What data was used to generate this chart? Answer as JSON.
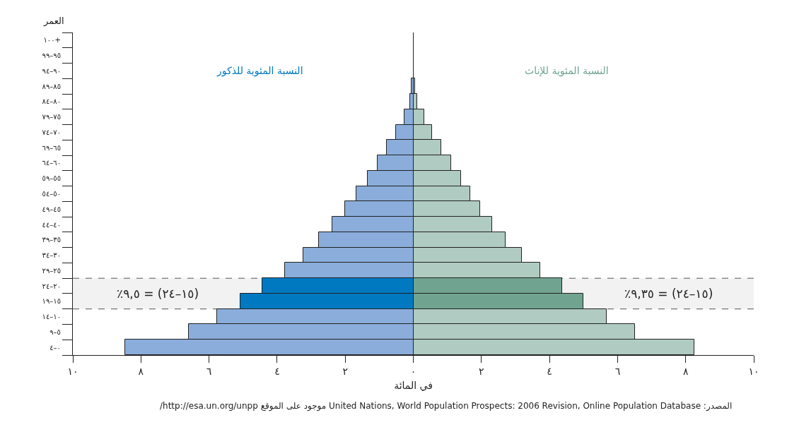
{
  "chart_data": {
    "type": "bar",
    "orientation": "horizontal",
    "ylabel": "العمر",
    "xlabel": "في المائة",
    "categories": [
      "١٠٠+",
      "٩٩–٩٥",
      "٩٤–٩٠",
      "٨٩–٨٥",
      "٨٤–٨٠",
      "٧٩–٧٥",
      "٧٤–٧٠",
      "٦٩–٦٥",
      "٦٤–٦٠",
      "٥٩–٥٥",
      "٥٤–٥٠",
      "٤٩–٤٥",
      "٤٤–٤٠",
      "٣٩–٣٥",
      "٣٤–٣٠",
      "٢٩–٢٥",
      "٢٤–٢٠",
      "١٩–١٥",
      "١٤–١٠",
      "٩–٥",
      "٤–٠"
    ],
    "series": [
      {
        "name": "النسبة المئوية للذكور",
        "colors": [
          "#8aaddb",
          "#8aaddb",
          "#8aaddb",
          "#8aaddb",
          "#8aaddb",
          "#8aaddb",
          "#8aaddb",
          "#8aaddb",
          "#8aaddb",
          "#8aaddb",
          "#8aaddb",
          "#8aaddb",
          "#8aaddb",
          "#8aaddb",
          "#8aaddb",
          "#8aaddb",
          "#0079c1",
          "#0079c1",
          "#8aaddb",
          "#8aaddb",
          "#8aaddb"
        ],
        "values": [
          null,
          null,
          null,
          -0.05,
          -0.09,
          -0.26,
          -0.51,
          -0.78,
          -1.04,
          -1.34,
          -1.67,
          -2.0,
          -2.37,
          -2.78,
          -3.23,
          -3.76,
          -4.43,
          -5.07,
          -5.76,
          -6.59,
          -8.47
        ]
      },
      {
        "name": "النسبة المئوية للإناث",
        "colors": [
          "#b0cbc1",
          "#b0cbc1",
          "#b0cbc1",
          "#b0cbc1",
          "#b0cbc1",
          "#b0cbc1",
          "#b0cbc1",
          "#b0cbc1",
          "#b0cbc1",
          "#b0cbc1",
          "#b0cbc1",
          "#b0cbc1",
          "#b0cbc1",
          "#b0cbc1",
          "#b0cbc1",
          "#b0cbc1",
          "#71a490",
          "#71a490",
          "#b0cbc1",
          "#b0cbc1",
          "#b0cbc1"
        ],
        "values": [
          null,
          null,
          null,
          0.05,
          0.11,
          0.32,
          0.56,
          0.83,
          1.11,
          1.4,
          1.67,
          1.97,
          2.31,
          2.72,
          3.18,
          3.72,
          4.37,
          4.99,
          5.68,
          6.51,
          8.26
        ]
      }
    ],
    "xlim": [
      -10,
      10
    ],
    "xticks": [
      {
        "value": -10,
        "label": "١٠"
      },
      {
        "value": -8,
        "label": "٨"
      },
      {
        "value": -6,
        "label": "٦"
      },
      {
        "value": -4,
        "label": "٤"
      },
      {
        "value": -2,
        "label": "٢"
      },
      {
        "value": 0,
        "label": "٠"
      },
      {
        "value": 2,
        "label": "٢"
      },
      {
        "value": 4,
        "label": "٤"
      },
      {
        "value": 6,
        "label": "٦"
      },
      {
        "value": 8,
        "label": "٨"
      },
      {
        "value": 10,
        "label": "١٠"
      }
    ],
    "stacked": true,
    "bands": [
      {
        "axis": "y",
        "from": "٢٤–٢٠",
        "to": "١٩–١٥",
        "color": "#555555"
      }
    ],
    "annotations": [
      "٪٩,٥ = (٢٤–١٥)",
      "٪٩,٣٥ = (٢٤–١٥)",
      "المصدر: United Nations, World Population Prospects: 2006 Revision, Online Population Database موجود على الموقع http://esa.un.org/unpp/"
    ],
    "grid": false,
    "legend": false
  }
}
